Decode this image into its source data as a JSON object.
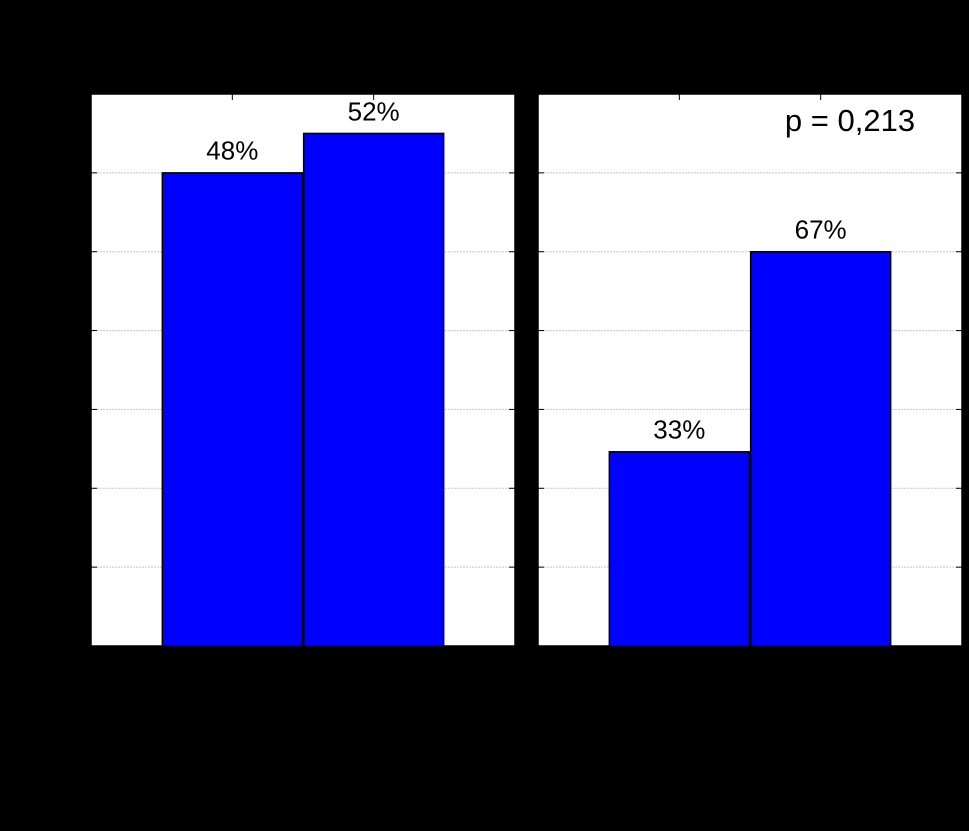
{
  "chart_data": [
    {
      "type": "bar",
      "categories": [
        null,
        null
      ],
      "values": [
        48,
        52
      ],
      "value_labels": [
        "48%",
        "52%"
      ],
      "color": "#0000ff",
      "ylim": [
        0,
        56
      ],
      "yticks": [
        0,
        8,
        16,
        24,
        32,
        40,
        48,
        56
      ],
      "grid": true
    },
    {
      "type": "bar",
      "categories": [
        null,
        null
      ],
      "values": [
        33,
        67
      ],
      "value_labels": [
        "33%",
        "67%"
      ],
      "color": "#0000ff",
      "ylim": [
        0,
        93.8
      ],
      "yticks": [
        0,
        13.4,
        26.8,
        40.2,
        53.6,
        67,
        80.4,
        93.8
      ],
      "grid": true,
      "annotation": "p = 0,213"
    }
  ]
}
